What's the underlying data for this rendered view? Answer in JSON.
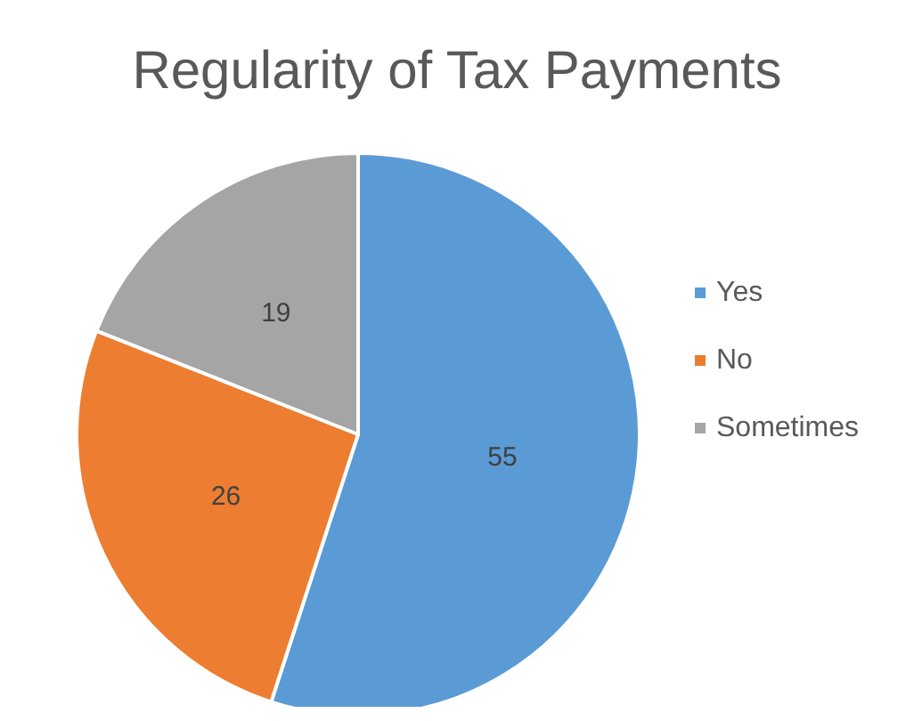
{
  "chart_data": {
    "type": "pie",
    "title": "Regularity of Tax Payments",
    "categories": [
      "Yes",
      "No",
      "Sometimes"
    ],
    "values": [
      55,
      26,
      19
    ],
    "colors": [
      "#5b9bd5",
      "#ed7d31",
      "#a5a5a5"
    ],
    "data_labels": true,
    "legend": "right"
  }
}
